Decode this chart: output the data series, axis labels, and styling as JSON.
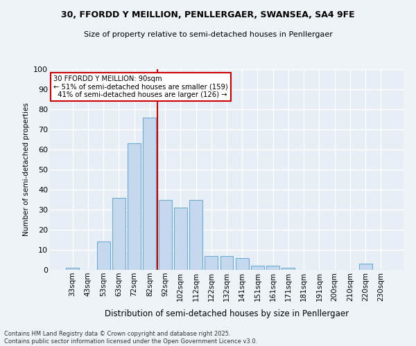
{
  "title1": "30, FFORDD Y MEILLION, PENLLERGAER, SWANSEA, SA4 9FE",
  "title2": "Size of property relative to semi-detached houses in Penllergaer",
  "xlabel": "Distribution of semi-detached houses by size in Penllergaer",
  "ylabel": "Number of semi-detached properties",
  "categories": [
    "33sqm",
    "43sqm",
    "53sqm",
    "63sqm",
    "72sqm",
    "82sqm",
    "92sqm",
    "102sqm",
    "112sqm",
    "122sqm",
    "132sqm",
    "141sqm",
    "151sqm",
    "161sqm",
    "171sqm",
    "181sqm",
    "191sqm",
    "200sqm",
    "210sqm",
    "220sqm",
    "230sqm"
  ],
  "values": [
    1,
    0,
    14,
    36,
    63,
    76,
    35,
    31,
    35,
    7,
    7,
    6,
    2,
    2,
    1,
    0,
    0,
    0,
    0,
    3,
    0
  ],
  "bar_color": "#c5d8ed",
  "bar_edge_color": "#6aaed6",
  "property_label": "30 FFORDD Y MEILLION: 90sqm",
  "pct_smaller": 51,
  "count_smaller": 159,
  "pct_larger": 41,
  "count_larger": 126,
  "vline_color": "#cc0000",
  "annotation_box_color": "#ffffff",
  "annotation_box_edge": "#cc0000",
  "ylim": [
    0,
    100
  ],
  "yticks": [
    0,
    10,
    20,
    30,
    40,
    50,
    60,
    70,
    80,
    90,
    100
  ],
  "plot_bg": "#e8eef5",
  "grid_color": "#ffffff",
  "fig_bg": "#eef3f8",
  "footnote": "Contains HM Land Registry data © Crown copyright and database right 2025.\nContains public sector information licensed under the Open Government Licence v3.0."
}
